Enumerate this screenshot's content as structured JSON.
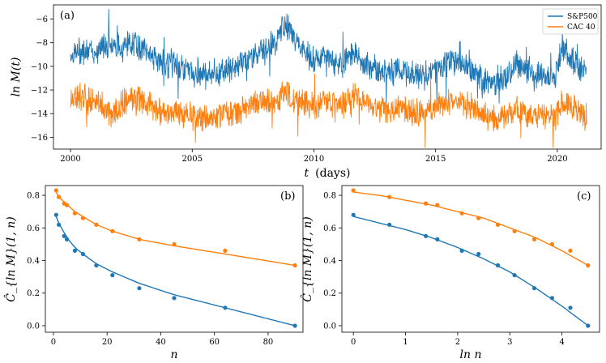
{
  "colors": {
    "sp500": "#1f77b4",
    "cac40": "#ff7f0e"
  },
  "chart_data": [
    {
      "type": "line",
      "panel_label": "(a)",
      "xlabel": "t (days)",
      "xlabel_main": "t",
      "xlabel_unit": "(days)",
      "ylabel": "ln M(t)",
      "xlim": [
        1999.3,
        2021.8
      ],
      "ylim": [
        -17,
        -4.8
      ],
      "xticks": [
        2000,
        2005,
        2010,
        2015,
        2020
      ],
      "xtick_labels": [
        "2000",
        "2005",
        "2010",
        "2015",
        "2020"
      ],
      "yticks": [
        -16,
        -14,
        -12,
        -10,
        -8,
        -6
      ],
      "ytick_labels": [
        "−16",
        "−14",
        "−12",
        "−10",
        "−8",
        "−6"
      ],
      "legend_position": "top-right",
      "series": [
        {
          "name": "S&P500",
          "x": [
            2000.0,
            2000.5,
            2001.0,
            2001.3,
            2001.7,
            2002.0,
            2002.5,
            2002.8,
            2003.2,
            2003.6,
            2004.0,
            2004.5,
            2005.0,
            2005.5,
            2006.0,
            2006.4,
            2006.8,
            2007.2,
            2007.6,
            2008.0,
            2008.4,
            2008.8,
            2009.0,
            2009.3,
            2009.7,
            2010.0,
            2010.4,
            2010.8,
            2011.2,
            2011.6,
            2012.0,
            2012.5,
            2013.0,
            2013.5,
            2014.0,
            2014.5,
            2015.0,
            2015.5,
            2016.0,
            2016.5,
            2017.0,
            2017.5,
            2018.0,
            2018.3,
            2018.7,
            2019.0,
            2019.5,
            2019.9,
            2020.2,
            2020.5,
            2020.8,
            2021.2
          ],
          "values": [
            -9.0,
            -8.7,
            -8.8,
            -8.3,
            -8.0,
            -8.3,
            -7.9,
            -8.2,
            -8.8,
            -9.5,
            -9.8,
            -10.0,
            -10.3,
            -10.5,
            -10.6,
            -10.3,
            -10.0,
            -9.5,
            -8.8,
            -8.4,
            -8.2,
            -6.4,
            -7.0,
            -8.0,
            -9.0,
            -9.5,
            -9.0,
            -9.6,
            -9.8,
            -8.6,
            -9.8,
            -10.2,
            -10.5,
            -10.4,
            -10.7,
            -10.8,
            -10.3,
            -9.6,
            -9.8,
            -10.4,
            -11.2,
            -11.5,
            -10.6,
            -9.8,
            -10.2,
            -10.5,
            -10.8,
            -11.0,
            -8.2,
            -9.2,
            -10.0,
            -10.5
          ]
        },
        {
          "name": "CAC 40",
          "x": [
            2000.0,
            2000.5,
            2001.0,
            2001.3,
            2001.7,
            2002.0,
            2002.5,
            2002.8,
            2003.2,
            2003.6,
            2004.0,
            2004.5,
            2005.0,
            2005.5,
            2006.0,
            2006.4,
            2006.8,
            2007.2,
            2007.6,
            2008.0,
            2008.4,
            2008.8,
            2009.0,
            2009.3,
            2009.7,
            2010.0,
            2010.4,
            2010.8,
            2011.2,
            2011.6,
            2012.0,
            2012.5,
            2013.0,
            2013.5,
            2014.0,
            2014.5,
            2015.0,
            2015.5,
            2016.0,
            2016.5,
            2017.0,
            2017.5,
            2018.0,
            2018.3,
            2018.7,
            2019.0,
            2019.5,
            2019.9,
            2020.2,
            2020.5,
            2020.8,
            2021.2
          ],
          "values": [
            -12.5,
            -12.7,
            -13.0,
            -13.3,
            -14.2,
            -13.5,
            -12.5,
            -12.7,
            -13.2,
            -13.7,
            -13.9,
            -14.0,
            -14.2,
            -14.3,
            -14.3,
            -14.0,
            -13.9,
            -13.5,
            -13.0,
            -12.8,
            -13.0,
            -12.0,
            -12.5,
            -13.0,
            -13.2,
            -13.4,
            -13.0,
            -13.2,
            -13.1,
            -12.5,
            -13.0,
            -13.4,
            -13.7,
            -13.6,
            -13.8,
            -14.0,
            -13.4,
            -13.0,
            -13.1,
            -13.5,
            -14.2,
            -14.5,
            -14.0,
            -13.6,
            -13.9,
            -14.0,
            -14.3,
            -14.5,
            -12.8,
            -13.3,
            -13.6,
            -14.0
          ]
        }
      ]
    },
    {
      "type": "scatter",
      "panel_label": "(b)",
      "xlabel": "n",
      "ylabel": "Ĉ_{ln M}(1, n)",
      "xlim": [
        -3,
        93
      ],
      "ylim": [
        -0.04,
        0.86
      ],
      "xticks": [
        0,
        20,
        40,
        60,
        80
      ],
      "xtick_labels": [
        "0",
        "20",
        "40",
        "60",
        "80"
      ],
      "yticks": [
        0.0,
        0.2,
        0.4,
        0.6,
        0.8
      ],
      "ytick_labels": [
        "0.0",
        "0.2",
        "0.4",
        "0.6",
        "0.8"
      ],
      "series": [
        {
          "name": "S&P500",
          "x": [
            1,
            2,
            4,
            5,
            8,
            11,
            16,
            22,
            32,
            45,
            64,
            90
          ],
          "values": [
            0.68,
            0.62,
            0.55,
            0.53,
            0.46,
            0.44,
            0.37,
            0.31,
            0.23,
            0.17,
            0.11,
            0.0
          ],
          "fit_x": [
            1,
            2,
            4,
            6,
            8,
            11,
            16,
            22,
            32,
            45,
            64,
            90
          ],
          "fit_values": [
            0.67,
            0.63,
            0.57,
            0.52,
            0.48,
            0.44,
            0.38,
            0.33,
            0.26,
            0.19,
            0.11,
            0.0
          ]
        },
        {
          "name": "CAC 40",
          "x": [
            1,
            2,
            4,
            5,
            8,
            11,
            16,
            22,
            32,
            45,
            64,
            90
          ],
          "values": [
            0.83,
            0.79,
            0.75,
            0.74,
            0.69,
            0.66,
            0.62,
            0.58,
            0.53,
            0.5,
            0.46,
            0.37
          ],
          "fit_x": [
            1,
            2,
            4,
            6,
            8,
            11,
            16,
            22,
            32,
            45,
            64,
            90
          ],
          "fit_values": [
            0.82,
            0.79,
            0.76,
            0.73,
            0.7,
            0.67,
            0.62,
            0.58,
            0.53,
            0.49,
            0.44,
            0.37
          ]
        }
      ]
    },
    {
      "type": "scatter",
      "panel_label": "(c)",
      "xlabel": "ln n",
      "ylabel": "Ĉ_{ln M}(1, n)",
      "xlim": [
        -0.22,
        4.72
      ],
      "ylim": [
        -0.04,
        0.86
      ],
      "xticks": [
        0,
        1,
        2,
        3,
        4
      ],
      "xtick_labels": [
        "0",
        "1",
        "2",
        "3",
        "4"
      ],
      "yticks": [
        0.0,
        0.2,
        0.4,
        0.6,
        0.8
      ],
      "ytick_labels": [
        "0.0",
        "0.2",
        "0.4",
        "0.6",
        "0.8"
      ],
      "series": [
        {
          "name": "S&P500",
          "x": [
            0.0,
            0.69,
            1.39,
            1.61,
            2.08,
            2.4,
            2.77,
            3.09,
            3.47,
            3.81,
            4.16,
            4.5
          ],
          "values": [
            0.68,
            0.62,
            0.55,
            0.53,
            0.46,
            0.44,
            0.37,
            0.31,
            0.23,
            0.17,
            0.11,
            0.0
          ],
          "fit_x": [
            0.0,
            0.5,
            1.0,
            1.5,
            2.0,
            2.5,
            3.0,
            3.5,
            4.0,
            4.5
          ],
          "fit_values": [
            0.67,
            0.63,
            0.59,
            0.54,
            0.48,
            0.41,
            0.33,
            0.23,
            0.12,
            0.0
          ]
        },
        {
          "name": "CAC 40",
          "x": [
            0.0,
            0.69,
            1.39,
            1.61,
            2.08,
            2.4,
            2.77,
            3.09,
            3.47,
            3.81,
            4.16,
            4.5
          ],
          "values": [
            0.83,
            0.79,
            0.75,
            0.74,
            0.69,
            0.66,
            0.62,
            0.58,
            0.53,
            0.5,
            0.46,
            0.37
          ],
          "fit_x": [
            0.0,
            0.5,
            1.0,
            1.5,
            2.0,
            2.5,
            3.0,
            3.5,
            4.0,
            4.5
          ],
          "fit_values": [
            0.82,
            0.8,
            0.77,
            0.74,
            0.7,
            0.66,
            0.6,
            0.54,
            0.46,
            0.37
          ]
        }
      ]
    }
  ]
}
